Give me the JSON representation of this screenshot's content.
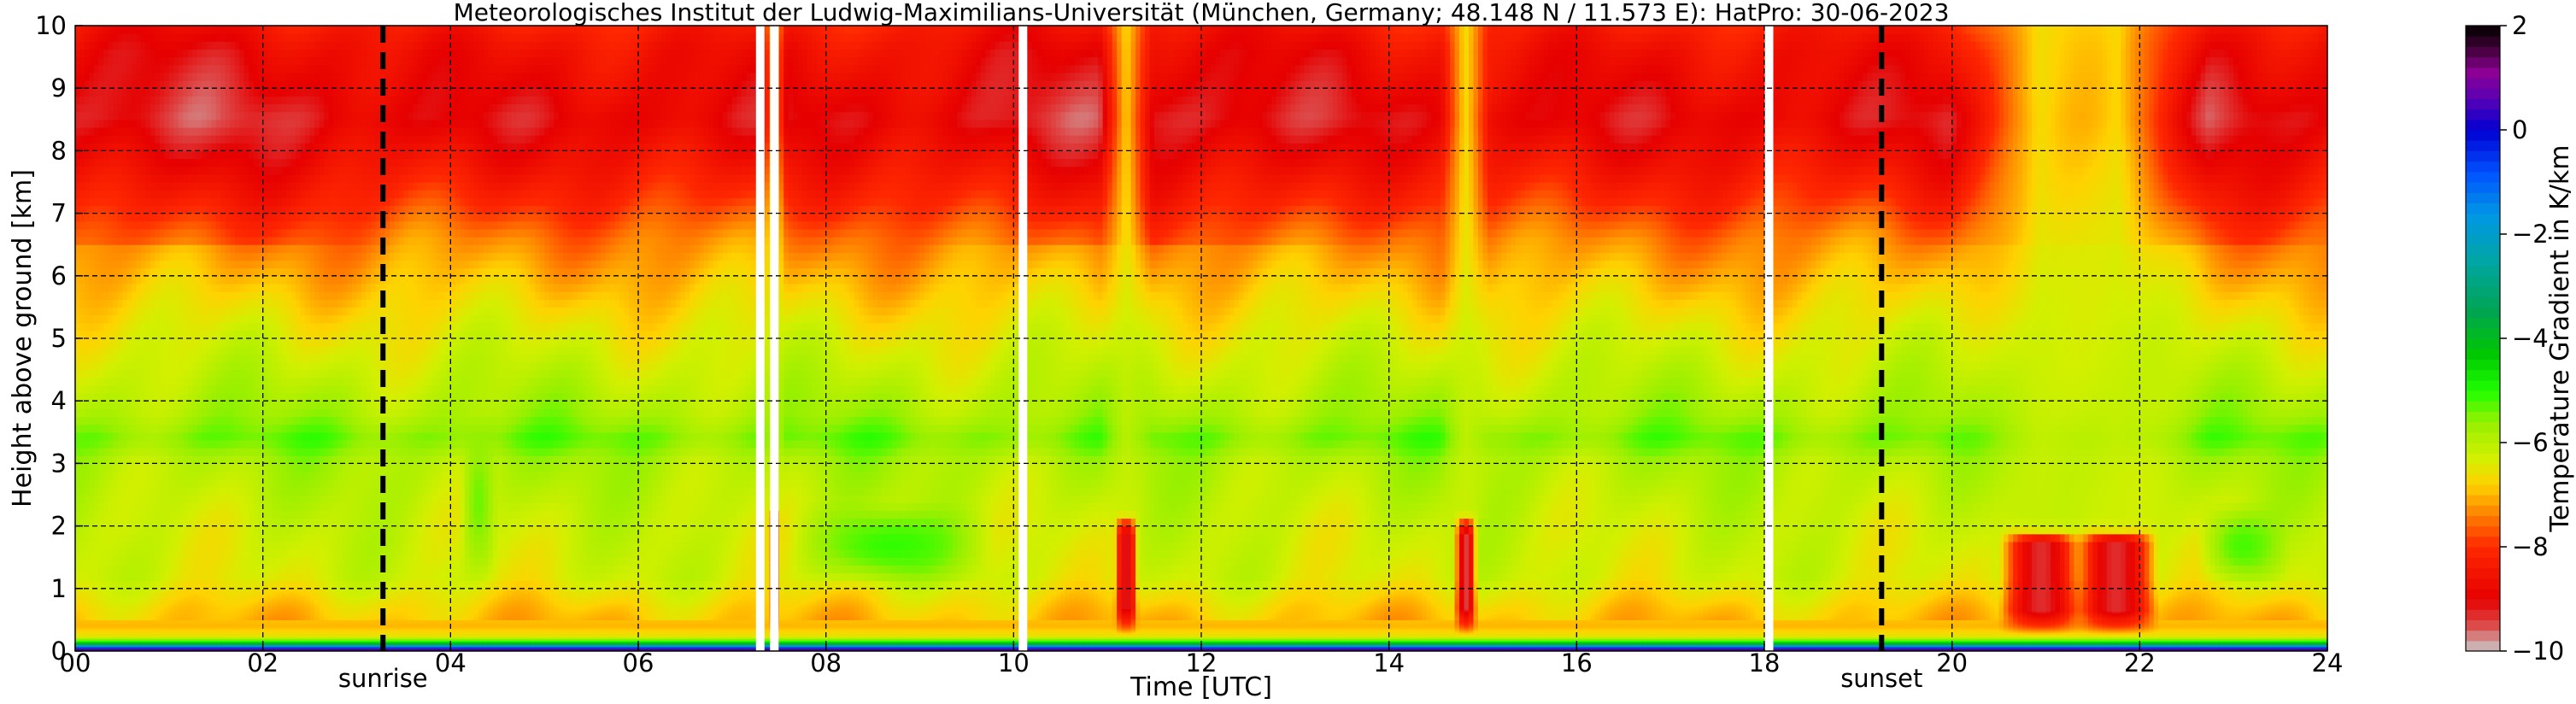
{
  "chart_data": {
    "type": "heatmap",
    "title": "Meteorologisches Institut der Ludwig-Maximilians-Universität (München, Germany; 48.148 N / 11.573 E):    HatPro: 30-06-2023",
    "xlabel": "Time [UTC]",
    "ylabel": "Height above ground [km]",
    "xlim": [
      0,
      24
    ],
    "ylim": [
      0,
      10
    ],
    "x_ticks": [
      0,
      2,
      4,
      6,
      8,
      10,
      12,
      14,
      16,
      18,
      20,
      22,
      24
    ],
    "x_tick_labels": [
      "00",
      "02",
      "04",
      "06",
      "08",
      "10",
      "12",
      "14",
      "16",
      "18",
      "20",
      "22",
      "24"
    ],
    "y_ticks": [
      0,
      1,
      2,
      3,
      4,
      5,
      6,
      7,
      8,
      9,
      10
    ],
    "y_tick_labels": [
      "0",
      "1",
      "2",
      "3",
      "4",
      "5",
      "6",
      "7",
      "8",
      "9",
      "10"
    ],
    "grid": true,
    "grid_style": "dashed",
    "colorbar": {
      "label": "Temperature Gradient in K/km",
      "range": [
        -10,
        2
      ],
      "ticks": [
        2,
        0,
        -2,
        -4,
        -6,
        -8,
        -10
      ],
      "tick_labels": [
        "2",
        "0",
        "−2",
        "−4",
        "−6",
        "−8",
        "−10"
      ],
      "stops": [
        {
          "value": -10,
          "color": "#c8c8c8"
        },
        {
          "value": -9.5,
          "color": "#dd4a4a"
        },
        {
          "value": -9,
          "color": "#e60000"
        },
        {
          "value": -8,
          "color": "#ff2800"
        },
        {
          "value": -7.3,
          "color": "#ff8c00"
        },
        {
          "value": -6.8,
          "color": "#ffd200"
        },
        {
          "value": -6.3,
          "color": "#d2f000"
        },
        {
          "value": -5.6,
          "color": "#96f000"
        },
        {
          "value": -5,
          "color": "#1eff00"
        },
        {
          "value": -4.3,
          "color": "#00c800"
        },
        {
          "value": -3.5,
          "color": "#00a550"
        },
        {
          "value": -2.5,
          "color": "#00a5a5"
        },
        {
          "value": -1.6,
          "color": "#0096e6"
        },
        {
          "value": -0.8,
          "color": "#0050ff"
        },
        {
          "value": 0,
          "color": "#0000d2"
        },
        {
          "value": 0.6,
          "color": "#5a00b4"
        },
        {
          "value": 1.1,
          "color": "#8c0096"
        },
        {
          "value": 1.6,
          "color": "#3c0032"
        },
        {
          "value": 2,
          "color": "#000000"
        }
      ]
    },
    "vertical_lines": [
      {
        "x": 3.28,
        "label": "sunrise",
        "style": "dashed"
      },
      {
        "x": 19.25,
        "label": "sunset",
        "style": "dashed"
      }
    ],
    "data_gaps": [
      7.3,
      7.45,
      10.1,
      18.05
    ],
    "height_profile": [
      {
        "z": 0.0,
        "v": 2.0
      },
      {
        "z": 0.05,
        "v": 0.0
      },
      {
        "z": 0.1,
        "v": -3.0
      },
      {
        "z": 0.16,
        "v": -5.0
      },
      {
        "z": 0.24,
        "v": -6.5
      },
      {
        "z": 0.4,
        "v": -7.0
      },
      {
        "z": 0.7,
        "v": -6.8
      },
      {
        "z": 1.2,
        "v": -6.3
      },
      {
        "z": 2.0,
        "v": -6.2
      },
      {
        "z": 3.0,
        "v": -5.9
      },
      {
        "z": 3.4,
        "v": -5.4
      },
      {
        "z": 3.8,
        "v": -5.8
      },
      {
        "z": 4.4,
        "v": -6.1
      },
      {
        "z": 5.2,
        "v": -6.5
      },
      {
        "z": 6.0,
        "v": -7.0
      },
      {
        "z": 6.6,
        "v": -7.4
      },
      {
        "z": 7.2,
        "v": -8.0
      },
      {
        "z": 7.8,
        "v": -8.5
      },
      {
        "z": 8.5,
        "v": -9.0
      },
      {
        "z": 9.6,
        "v": -8.6
      },
      {
        "z": 10.0,
        "v": -8.3
      }
    ],
    "features": [
      {
        "x": 11.2,
        "width": 0.13,
        "zmax": 2.3,
        "peak": -9.2
      },
      {
        "x": 14.82,
        "width": 0.12,
        "zmax": 2.3,
        "peak": -9.4
      },
      {
        "x": 7.45,
        "width": 0.06,
        "zmax": 2.5,
        "peak": -9.0
      },
      {
        "x": 20.95,
        "width": 0.45,
        "zmax": 2.1,
        "peak": -9.3
      },
      {
        "x": 21.75,
        "width": 0.45,
        "zmax": 2.1,
        "peak": -9.3
      }
    ],
    "stable_zones": [
      {
        "x0": 7.6,
        "x1": 9.8,
        "z0": 1.0,
        "z1": 2.4,
        "v": -5.1
      },
      {
        "x0": 22.6,
        "x1": 23.6,
        "z0": 1.0,
        "z1": 2.4,
        "v": -5.2
      },
      {
        "x0": 4.1,
        "x1": 4.5,
        "z0": 1.0,
        "z1": 3.8,
        "v": -5.4
      }
    ]
  }
}
